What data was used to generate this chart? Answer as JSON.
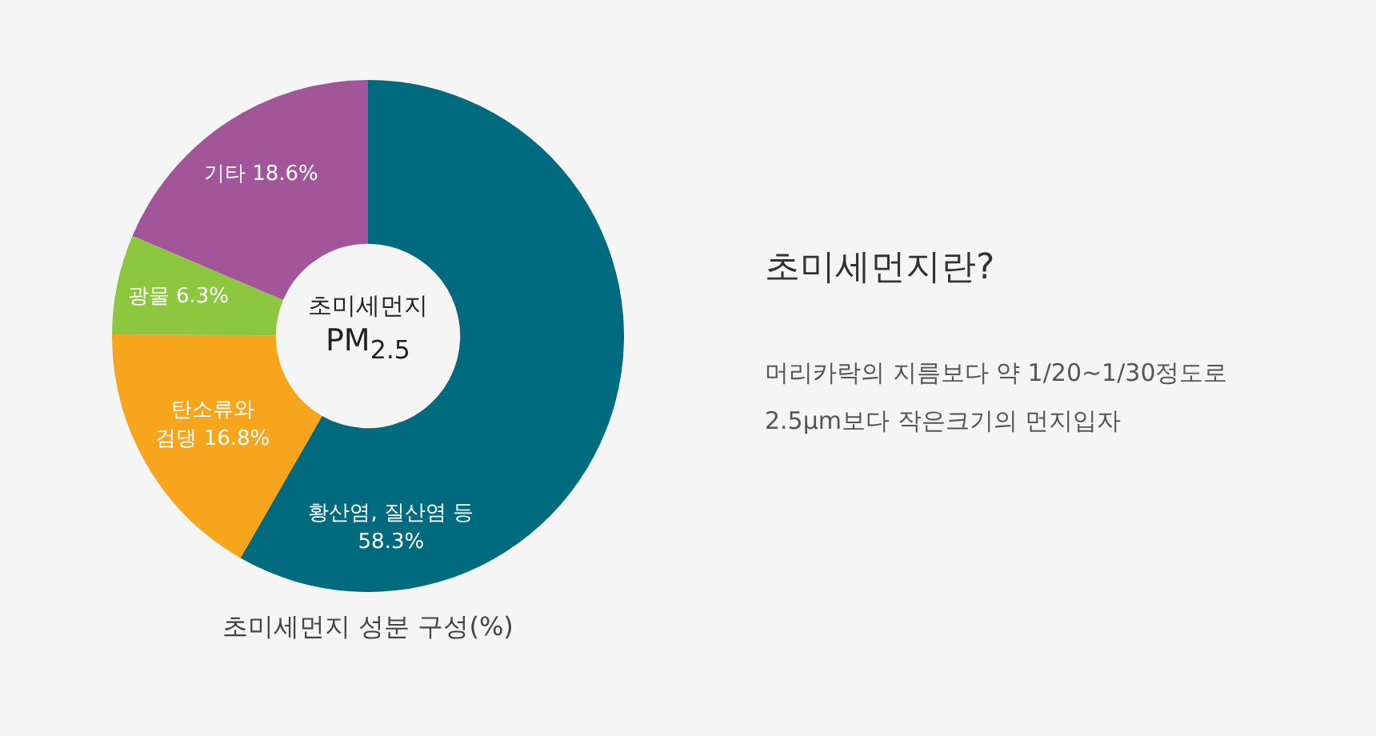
{
  "chart_data": {
    "type": "donut",
    "title": "초미세먼지 성분 구성(%)",
    "categories": [
      "황산염, 질산염 등",
      "탄소류와 검댕",
      "광물",
      "기타"
    ],
    "values": [
      58.3,
      16.8,
      6.3,
      18.6
    ],
    "value_labels": [
      "58.3%",
      "16.8%",
      "6.3%",
      "18.6%"
    ],
    "colors": [
      "#006a7f",
      "#f8a51e",
      "#8dc63f",
      "#a3559a"
    ],
    "legend": false,
    "annotations": [
      "초미세먼지 PM$_{2.5}$",
      "초미세먼지란?",
      "머리카락의 지름보다 약 1/20~1/30정도로\n2.5μm보다 작은크기의 먼지입자"
    ]
  }
}
